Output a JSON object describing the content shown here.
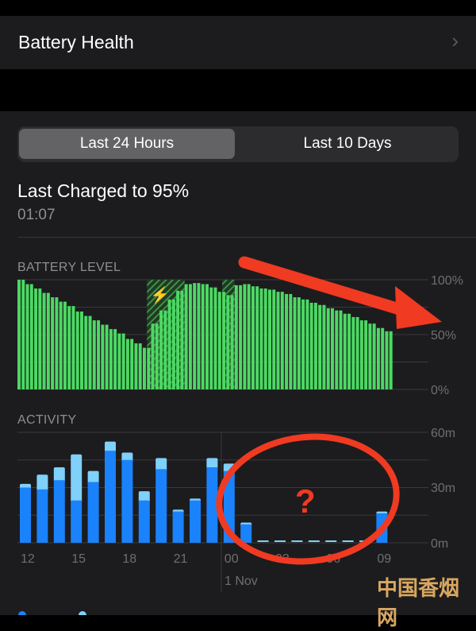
{
  "battery_health": {
    "label": "Battery Health",
    "chevron_icon": "chevron-right-icon"
  },
  "segmented": {
    "options": [
      "Last 24 Hours",
      "Last 10 Days"
    ],
    "selected": 0
  },
  "last_charged": {
    "title": "Last Charged to 95%",
    "time": "01:07"
  },
  "colors": {
    "battery": "#4cd964",
    "screen_on": "#1a82fb",
    "screen_off": "#7fd0fb",
    "annotation": "#f03a22"
  },
  "chart_data": [
    {
      "type": "bar",
      "title": "BATTERY LEVEL",
      "y_ticks": [
        "100%",
        "50%",
        "0%"
      ],
      "ylim": [
        0,
        100
      ],
      "x_start": "12:00",
      "x_step_minutes": 30,
      "values": [
        100,
        96,
        92,
        88,
        84,
        80,
        76,
        71,
        67,
        63,
        59,
        55,
        51,
        46,
        42,
        38,
        60,
        72,
        82,
        90,
        96,
        97,
        96,
        93,
        89,
        86,
        95,
        96,
        94,
        92,
        91,
        89,
        87,
        84,
        82,
        79,
        77,
        74,
        72,
        69,
        66,
        63,
        60,
        56,
        53
      ],
      "charging_intervals": [
        [
          15.5,
          20
        ],
        [
          24.5,
          26
        ]
      ],
      "charging_icon": "lightning-bolt-icon"
    },
    {
      "type": "bar",
      "title": "ACTIVITY",
      "y_ticks": [
        "60m",
        "30m",
        "0m"
      ],
      "ylim": [
        0,
        60
      ],
      "categories": [
        "12",
        "13",
        "14",
        "15",
        "16",
        "17",
        "18",
        "19",
        "20",
        "21",
        "22",
        "23",
        "00",
        "01",
        "02",
        "03",
        "04",
        "05",
        "06",
        "07",
        "08",
        "09"
      ],
      "x_tick_labels": [
        "12",
        "15",
        "18",
        "21",
        "00",
        "03",
        "06",
        "09"
      ],
      "date_label": "1 Nov",
      "series": [
        {
          "key": "screen_on",
          "values": [
            30,
            29,
            34,
            23,
            33,
            50,
            45,
            23,
            40,
            17,
            23,
            41,
            39,
            10,
            0,
            0,
            0,
            0,
            0,
            0,
            0,
            16
          ]
        },
        {
          "key": "screen_off",
          "values": [
            2,
            8,
            7,
            25,
            6,
            5,
            4,
            5,
            6,
            1,
            1,
            5,
            4,
            1,
            0,
            0,
            0,
            0,
            0,
            0,
            0,
            1
          ]
        }
      ]
    }
  ],
  "annotations": {
    "question_mark": "?"
  },
  "watermark": "中国香烟网"
}
